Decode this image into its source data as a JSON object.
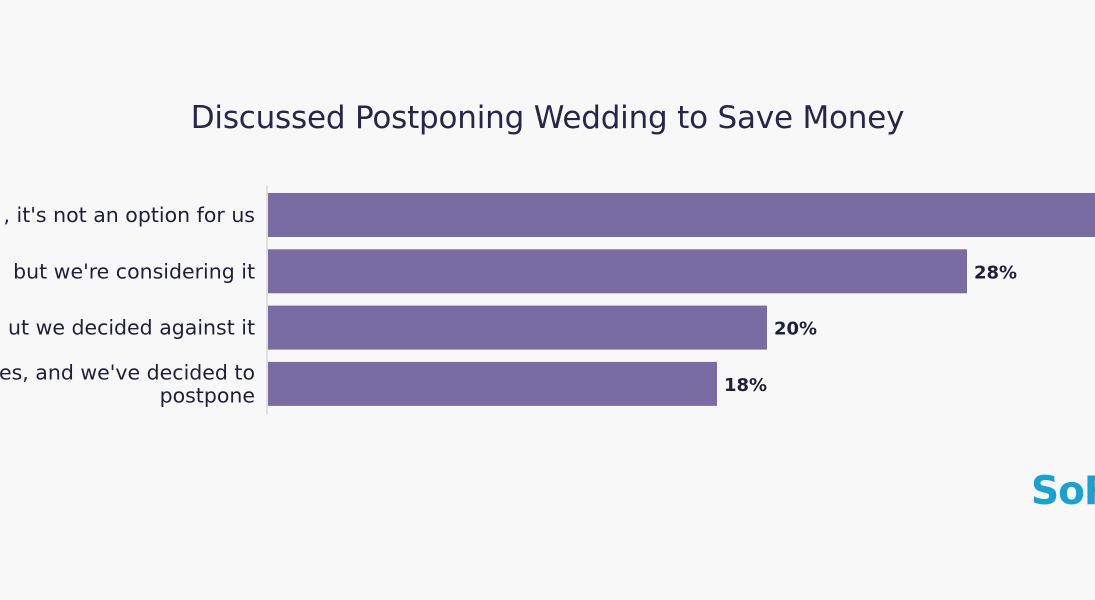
{
  "logo": {
    "text": "SoF",
    "color": "#1aa1d0"
  },
  "chart_data": {
    "type": "bar",
    "orientation": "horizontal",
    "title": "Discussed Postponing Wedding to Save Money",
    "categories": [
      ", it's not an option for us",
      "but we're considering it",
      "ut we decided against it",
      "es, and we've decided to postpone"
    ],
    "category_lines": [
      [
        ", it's not an option for us"
      ],
      [
        "but we're considering it"
      ],
      [
        "ut we decided against it"
      ],
      [
        "es, and we've decided to",
        "postpone"
      ]
    ],
    "values": [
      34,
      28,
      20,
      18
    ],
    "value_labels": [
      "",
      "28%",
      "20%",
      "18%"
    ],
    "xlim": [
      0,
      34
    ],
    "grid": false,
    "legend": "none",
    "bar_color": "#796ca3",
    "axis_color": "#d6d6dc",
    "text_color": "#1f1f3a"
  }
}
